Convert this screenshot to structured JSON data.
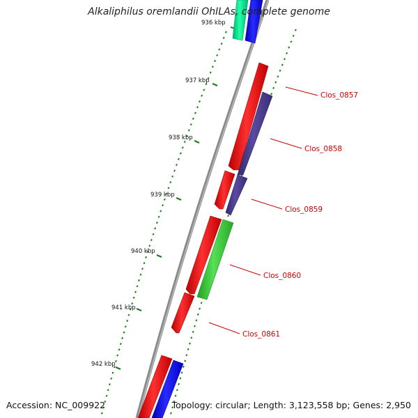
{
  "title": "Alkaliphilus oremlandii OhILAs, complete genome",
  "footer": {
    "accession": "Accession: NC_009922",
    "summary": "Topology: circular; Length: 3,123,558 bp; Genes: 2,950"
  },
  "colors": {
    "backbone": "#8a8a8a",
    "tick": "#1f7a1f",
    "label": "#cc0000",
    "cds_forward": "#ff0000",
    "cds_reverse": "#0000ff",
    "cog_purple": "#4b3c8c",
    "cog_green": "#33cc33",
    "cog_teal": "#00e08a"
  },
  "scale_labels": [
    "936 kbp",
    "937 kbp",
    "938 kbp",
    "939 kbp",
    "940 kbp",
    "941 kbp",
    "942 kbp"
  ],
  "gene_labels": [
    "Clos_0857",
    "Clos_0858",
    "Clos_0859",
    "Clos_0860",
    "Clos_0861"
  ]
}
